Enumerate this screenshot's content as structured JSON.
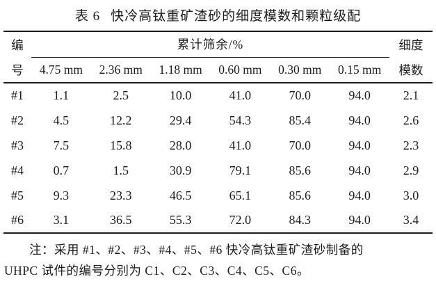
{
  "caption": {
    "label": "表 6",
    "title": "快冷高钛重矿渣砂的细度模数和颗粒级配"
  },
  "table": {
    "id_header_top": "编",
    "id_header_bottom": "号",
    "group_header": "累计筛余/%",
    "sieve_headers": [
      "4.75 mm",
      "2.36 mm",
      "1.18 mm",
      "0.60 mm",
      "0.30 mm",
      "0.15 mm"
    ],
    "fm_header_top": "细度",
    "fm_header_bottom": "模数",
    "rows": [
      {
        "id": "#1",
        "v": [
          "1.1",
          "2.5",
          "10.0",
          "41.0",
          "70.0",
          "94.0"
        ],
        "fm": "2.1"
      },
      {
        "id": "#2",
        "v": [
          "4.5",
          "12.2",
          "29.4",
          "54.3",
          "85.4",
          "94.0"
        ],
        "fm": "2.6"
      },
      {
        "id": "#3",
        "v": [
          "7.5",
          "15.8",
          "28.0",
          "41.0",
          "70.0",
          "94.0"
        ],
        "fm": "2.3"
      },
      {
        "id": "#4",
        "v": [
          "0.7",
          "1.5",
          "30.9",
          "79.1",
          "85.6",
          "94.0"
        ],
        "fm": "2.9"
      },
      {
        "id": "#5",
        "v": [
          "9.3",
          "23.3",
          "46.5",
          "65.1",
          "85.6",
          "94.0"
        ],
        "fm": "3.0"
      },
      {
        "id": "#6",
        "v": [
          "3.1",
          "36.5",
          "55.3",
          "72.0",
          "84.3",
          "94.0"
        ],
        "fm": "3.4"
      }
    ]
  },
  "note": {
    "line1": "注：采用 #1、#2、#3、#4、#5、#6 快冷高钛重矿渣砂制备的",
    "line2": "UHPC 试件的编号分别为 C1、C2、C3、C4、C5、C6。"
  },
  "colors": {
    "text": "#1b1b1b",
    "rule": "#1b1b1b",
    "background": "#ffffff"
  }
}
